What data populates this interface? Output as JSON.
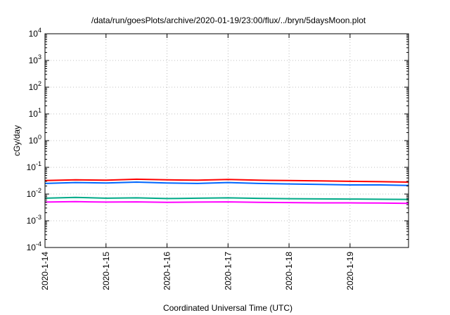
{
  "chart_data": {
    "type": "line",
    "title": "/data/run/goesPlots/archive/2020-01-19/23:00/flux/../bryn/5daysMoon.plot",
    "xlabel": "Coordinated Universal Time (UTC)",
    "ylabel": "cGy/day",
    "y_scale": "log",
    "ylim": [
      0.0001,
      10000
    ],
    "xlim": [
      "2020-01-14 00:00",
      "2020-01-19 23:00"
    ],
    "grid": true,
    "legend": "none",
    "x_ticks": [
      "2020-1-14",
      "2020-1-15",
      "2020-1-16",
      "2020-1-17",
      "2020-1-18",
      "2020-1-19"
    ],
    "y_ticks": [
      {
        "base": "10",
        "exp": "-4",
        "value": 0.0001
      },
      {
        "base": "10",
        "exp": "-3",
        "value": 0.001
      },
      {
        "base": "10",
        "exp": "-2",
        "value": 0.01
      },
      {
        "base": "10",
        "exp": "-1",
        "value": 0.1
      },
      {
        "base": "10",
        "exp": "0",
        "value": 1
      },
      {
        "base": "10",
        "exp": "1",
        "value": 10
      },
      {
        "base": "10",
        "exp": "2",
        "value": 100
      },
      {
        "base": "10",
        "exp": "3",
        "value": 1000
      },
      {
        "base": "10",
        "exp": "4",
        "value": 10000
      }
    ],
    "series": [
      {
        "color": "#ff0000",
        "x": [
          "2020-01-14 00:00",
          "2020-01-14 12:00",
          "2020-01-15 00:00",
          "2020-01-15 12:00",
          "2020-01-16 00:00",
          "2020-01-16 12:00",
          "2020-01-17 00:00",
          "2020-01-17 12:00",
          "2020-01-18 00:00",
          "2020-01-18 12:00",
          "2020-01-19 00:00",
          "2020-01-19 12:00",
          "2020-01-19 23:00"
        ],
        "values": [
          0.032,
          0.034,
          0.033,
          0.036,
          0.034,
          0.033,
          0.035,
          0.033,
          0.032,
          0.031,
          0.03,
          0.029,
          0.028
        ]
      },
      {
        "color": "#0066ff",
        "x": [
          "2020-01-14 00:00",
          "2020-01-14 12:00",
          "2020-01-15 00:00",
          "2020-01-15 12:00",
          "2020-01-16 00:00",
          "2020-01-16 12:00",
          "2020-01-17 00:00",
          "2020-01-17 12:00",
          "2020-01-18 00:00",
          "2020-01-18 12:00",
          "2020-01-19 00:00",
          "2020-01-19 12:00",
          "2020-01-19 23:00"
        ],
        "values": [
          0.025,
          0.027,
          0.026,
          0.028,
          0.026,
          0.025,
          0.027,
          0.025,
          0.024,
          0.023,
          0.022,
          0.022,
          0.021
        ]
      },
      {
        "color": "#00aa88",
        "x": [
          "2020-01-14 00:00",
          "2020-01-14 12:00",
          "2020-01-15 00:00",
          "2020-01-15 12:00",
          "2020-01-16 00:00",
          "2020-01-16 12:00",
          "2020-01-17 00:00",
          "2020-01-17 12:00",
          "2020-01-18 00:00",
          "2020-01-18 12:00",
          "2020-01-19 00:00",
          "2020-01-19 12:00",
          "2020-01-19 23:00"
        ],
        "values": [
          0.007,
          0.0075,
          0.007,
          0.0072,
          0.0068,
          0.007,
          0.0072,
          0.0069,
          0.0067,
          0.0066,
          0.0065,
          0.0064,
          0.0063
        ]
      },
      {
        "color": "#ff00ff",
        "x": [
          "2020-01-14 00:00",
          "2020-01-14 12:00",
          "2020-01-15 00:00",
          "2020-01-15 12:00",
          "2020-01-16 00:00",
          "2020-01-16 12:00",
          "2020-01-17 00:00",
          "2020-01-17 12:00",
          "2020-01-18 00:00",
          "2020-01-18 12:00",
          "2020-01-19 00:00",
          "2020-01-19 12:00",
          "2020-01-19 23:00"
        ],
        "values": [
          0.005,
          0.0052,
          0.005,
          0.0051,
          0.0049,
          0.005,
          0.0051,
          0.0049,
          0.0048,
          0.0047,
          0.0047,
          0.0046,
          0.0045
        ]
      }
    ]
  }
}
